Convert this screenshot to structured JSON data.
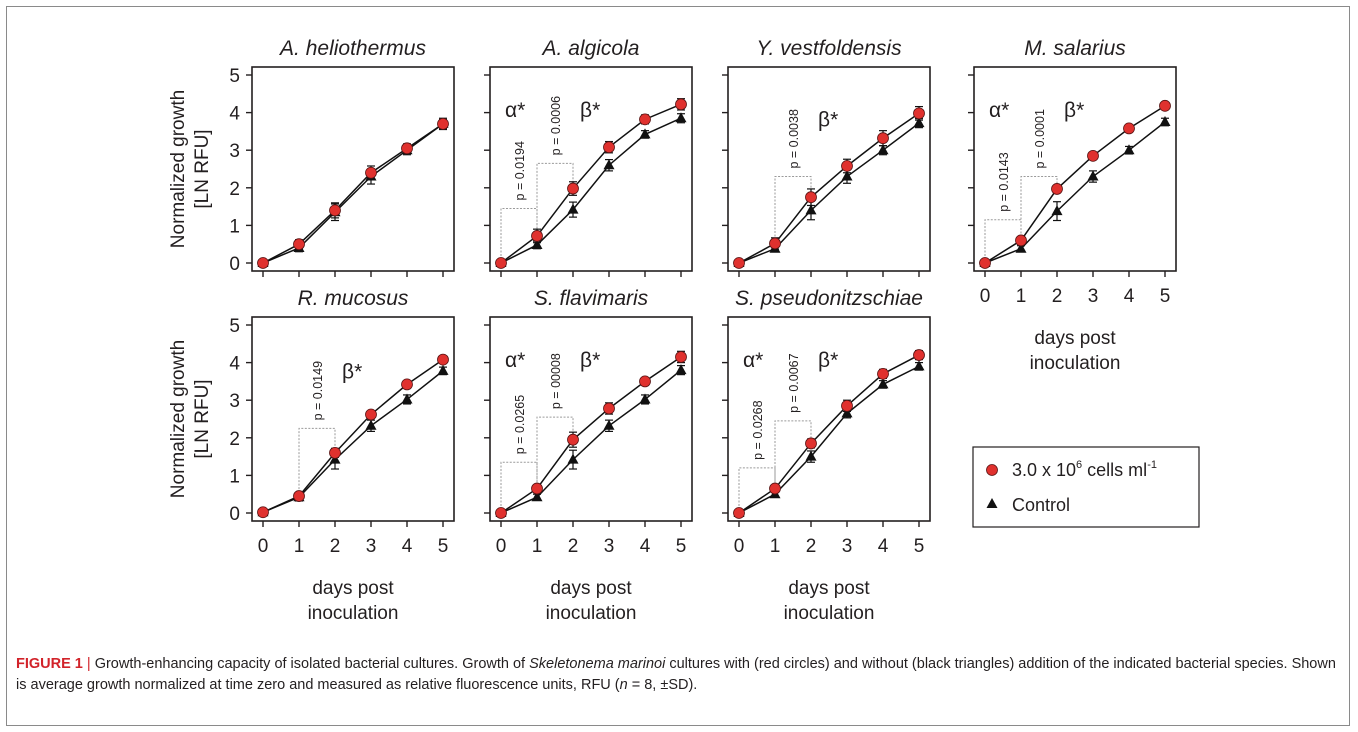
{
  "figure": {
    "y_label_line1": "Normalized growth",
    "y_label_line2": "[LN RFU]",
    "x_label_line1": "days post",
    "x_label_line2": "inoculation",
    "x_ticks": [
      "0",
      "1",
      "2",
      "3",
      "4",
      "5"
    ],
    "y_ticks": [
      "0",
      "1",
      "2",
      "3",
      "4",
      "5"
    ],
    "legend": {
      "treatment_prefix": "3.0 x 10",
      "treatment_exp": "6",
      "treatment_unit": " cells ml",
      "treatment_unit_exp": "-1",
      "control": "Control"
    },
    "colors": {
      "treatment": "#e0312e",
      "control": "#111111",
      "axis": "#231f20",
      "bracket": "#9a9a9a",
      "caption_label": "#d2232a"
    }
  },
  "caption": {
    "label": "FIGURE 1",
    "separator": " | ",
    "t1": "Growth-enhancing capacity of isolated bacterial cultures. Growth of ",
    "species": "Skeletonema marinoi",
    "t2": " cultures with (red circles) and without (black triangles) addition of the indicated bacterial species. Shown is average growth normalized at time zero and measured as relative fluorescence units, RFU (",
    "n": "n",
    "t3": " = 8, ±SD)."
  },
  "chart_data": [
    {
      "type": "line",
      "title": "A. heliothermus",
      "x": [
        0,
        1,
        2,
        3,
        4,
        5
      ],
      "ylim": [
        0,
        5
      ],
      "series": [
        {
          "name": "3.0 x 10⁶ cells ml⁻¹",
          "values": [
            0,
            0.5,
            1.4,
            2.4,
            3.05,
            3.7
          ],
          "sd": [
            0.05,
            0.12,
            0.2,
            0.18,
            0.12,
            0.15
          ]
        },
        {
          "name": "Control",
          "values": [
            0,
            0.4,
            1.35,
            2.3,
            3.0,
            3.7
          ],
          "sd": [
            0.05,
            0.1,
            0.22,
            0.2,
            0.12,
            0.12
          ]
        }
      ],
      "annotations": []
    },
    {
      "type": "line",
      "title": "A. algicola",
      "x": [
        0,
        1,
        2,
        3,
        4,
        5
      ],
      "ylim": [
        0,
        5
      ],
      "series": [
        {
          "name": "3.0 x 10⁶ cells ml⁻¹",
          "values": [
            0,
            0.72,
            1.98,
            3.08,
            3.82,
            4.22
          ],
          "sd": [
            0.05,
            0.18,
            0.18,
            0.15,
            0.12,
            0.15
          ]
        },
        {
          "name": "Control",
          "values": [
            0,
            0.48,
            1.42,
            2.6,
            3.42,
            3.85
          ],
          "sd": [
            0.05,
            0.1,
            0.2,
            0.15,
            0.1,
            0.12
          ]
        }
      ],
      "annotations": [
        {
          "symbol": "α*",
          "p": "p = 0.0194",
          "from": 0,
          "to": 1,
          "bracket_y": 1.45
        },
        {
          "symbol": "β*",
          "p": "p = 0.0006",
          "from": 1,
          "to": 2,
          "bracket_y": 2.65
        }
      ]
    },
    {
      "type": "line",
      "title": "Y. vestfoldensis",
      "x": [
        0,
        1,
        2,
        3,
        4,
        5
      ],
      "ylim": [
        0,
        5
      ],
      "series": [
        {
          "name": "3.0 x 10⁶ cells ml⁻¹",
          "values": [
            0,
            0.52,
            1.75,
            2.58,
            3.32,
            3.98
          ],
          "sd": [
            0.05,
            0.15,
            0.22,
            0.18,
            0.2,
            0.18
          ]
        },
        {
          "name": "Control",
          "values": [
            0,
            0.38,
            1.4,
            2.3,
            3.0,
            3.72
          ],
          "sd": [
            0.05,
            0.08,
            0.25,
            0.18,
            0.12,
            0.12
          ]
        }
      ],
      "annotations": [
        {
          "symbol": "β*",
          "p": "p = 0.0038",
          "from": 1,
          "to": 2,
          "bracket_y": 2.3
        }
      ]
    },
    {
      "type": "line",
      "title": "M. salarius",
      "x": [
        0,
        1,
        2,
        3,
        4,
        5
      ],
      "ylim": [
        0,
        5
      ],
      "series": [
        {
          "name": "3.0 x 10⁶ cells ml⁻¹",
          "values": [
            0,
            0.6,
            1.97,
            2.85,
            3.58,
            4.18
          ],
          "sd": [
            0.05,
            0.05,
            0.1,
            0.05,
            0.08,
            0.05
          ]
        },
        {
          "name": "Control",
          "values": [
            0,
            0.38,
            1.38,
            2.3,
            3.0,
            3.75
          ],
          "sd": [
            0.05,
            0.08,
            0.25,
            0.15,
            0.1,
            0.1
          ]
        }
      ],
      "annotations": [
        {
          "symbol": "α*",
          "p": "p = 0.0143",
          "from": 0,
          "to": 1,
          "bracket_y": 1.15
        },
        {
          "symbol": "β*",
          "p": "p = 0.0001",
          "from": 1,
          "to": 2,
          "bracket_y": 2.3
        }
      ]
    },
    {
      "type": "line",
      "title": "R. mucosus",
      "x": [
        0,
        1,
        2,
        3,
        4,
        5
      ],
      "ylim": [
        0,
        5
      ],
      "series": [
        {
          "name": "3.0 x 10⁶ cells ml⁻¹",
          "values": [
            0.02,
            0.45,
            1.6,
            2.62,
            3.42,
            4.08
          ],
          "sd": [
            0.03,
            0.08,
            0.12,
            0.08,
            0.08,
            0.06
          ]
        },
        {
          "name": "Control",
          "values": [
            0.02,
            0.42,
            1.42,
            2.32,
            3.02,
            3.78
          ],
          "sd": [
            0.03,
            0.1,
            0.25,
            0.15,
            0.12,
            0.1
          ]
        }
      ],
      "annotations": [
        {
          "symbol": "β*",
          "p": "p = 0.0149",
          "from": 1,
          "to": 2,
          "bracket_y": 2.25
        }
      ]
    },
    {
      "type": "line",
      "title": "S. flavimaris",
      "x": [
        0,
        1,
        2,
        3,
        4,
        5
      ],
      "ylim": [
        0,
        5
      ],
      "series": [
        {
          "name": "3.0 x 10⁶ cells ml⁻¹",
          "values": [
            0,
            0.65,
            1.95,
            2.78,
            3.5,
            4.15
          ],
          "sd": [
            0.04,
            0.1,
            0.2,
            0.15,
            0.1,
            0.15
          ]
        },
        {
          "name": "Control",
          "values": [
            0,
            0.42,
            1.42,
            2.32,
            3.02,
            3.8
          ],
          "sd": [
            0.04,
            0.08,
            0.25,
            0.15,
            0.12,
            0.12
          ]
        }
      ],
      "annotations": [
        {
          "symbol": "α*",
          "p": "p = 0.0265",
          "from": 0,
          "to": 1,
          "bracket_y": 1.35
        },
        {
          "symbol": "β*",
          "p": "p = 00008",
          "from": 1,
          "to": 2,
          "bracket_y": 2.55
        }
      ]
    },
    {
      "type": "line",
      "title": "S. pseudonitzschiae",
      "x": [
        0,
        1,
        2,
        3,
        4,
        5
      ],
      "ylim": [
        0,
        5
      ],
      "series": [
        {
          "name": "3.0 x 10⁶ cells ml⁻¹",
          "values": [
            0,
            0.65,
            1.85,
            2.85,
            3.7,
            4.2
          ],
          "sd": [
            0.04,
            0.08,
            0.12,
            0.15,
            0.12,
            0.12
          ]
        },
        {
          "name": "Control",
          "values": [
            0,
            0.5,
            1.5,
            2.65,
            3.42,
            3.9
          ],
          "sd": [
            0.04,
            0.06,
            0.15,
            0.12,
            0.1,
            0.1
          ]
        }
      ],
      "annotations": [
        {
          "symbol": "α*",
          "p": "p = 0.0268",
          "from": 0,
          "to": 1,
          "bracket_y": 1.2
        },
        {
          "symbol": "β*",
          "p": "p = 0.0067",
          "from": 1,
          "to": 2,
          "bracket_y": 2.45
        }
      ]
    }
  ]
}
